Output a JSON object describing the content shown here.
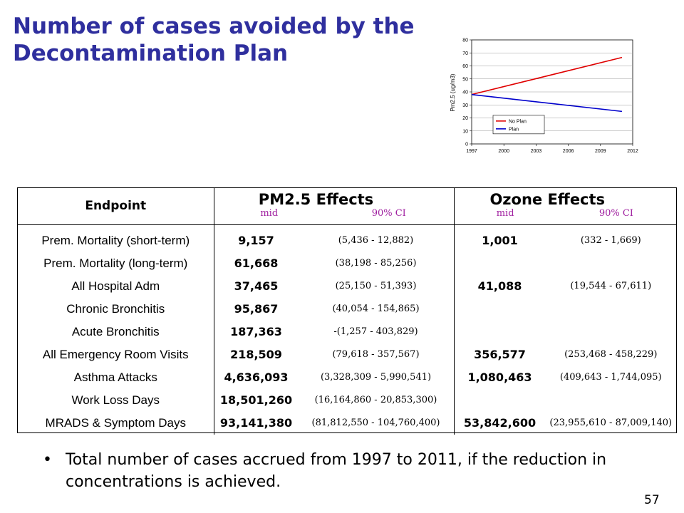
{
  "slide": {
    "title_line1": "Number of cases avoided by the",
    "title_line2": "Decontamination Plan",
    "bullet_marker": "•",
    "bullet_text": "Total number of cases accrued from 1997 to 2011, if the reduction in concentrations is achieved.",
    "page_number": "57"
  },
  "table": {
    "endpoint_header": "Endpoint",
    "pm25_header": "PM2.5 Effects",
    "ozone_header": "Ozone Effects",
    "mid_label": "mid",
    "ci_label": "90% CI",
    "rows": [
      {
        "endpoint": "Prem. Mortality (short-term)",
        "pm_mid": "9,157",
        "pm_ci": "(5,436 - 12,882)",
        "oz_mid": "1,001",
        "oz_ci": "(332 - 1,669)"
      },
      {
        "endpoint": "Prem. Mortality (long-term)",
        "pm_mid": "61,668",
        "pm_ci": "(38,198 - 85,256)",
        "oz_mid": "",
        "oz_ci": ""
      },
      {
        "endpoint": "All Hospital Adm",
        "pm_mid": "37,465",
        "pm_ci": "(25,150 - 51,393)",
        "oz_mid": "41,088",
        "oz_ci": "(19,544 - 67,611)"
      },
      {
        "endpoint": "Chronic Bronchitis",
        "pm_mid": "95,867",
        "pm_ci": "(40,054 - 154,865)",
        "oz_mid": "",
        "oz_ci": ""
      },
      {
        "endpoint": "Acute Bronchitis",
        "pm_mid": "187,363",
        "pm_ci": "-(1,257 - 403,829)",
        "oz_mid": "",
        "oz_ci": ""
      },
      {
        "endpoint": "All Emergency Room Visits",
        "pm_mid": "218,509",
        "pm_ci": "(79,618 - 357,567)",
        "oz_mid": "356,577",
        "oz_ci": "(253,468 - 458,229)"
      },
      {
        "endpoint": "Asthma Attacks",
        "pm_mid": "4,636,093",
        "pm_ci": "(3,328,309 - 5,990,541)",
        "oz_mid": "1,080,463",
        "oz_ci": "(409,643 - 1,744,095)"
      },
      {
        "endpoint": "Work Loss Days",
        "pm_mid": "18,501,260",
        "pm_ci": "(16,164,860 - 20,853,300)",
        "oz_mid": "",
        "oz_ci": ""
      },
      {
        "endpoint": "MRADS & Symptom Days",
        "pm_mid": "93,141,380",
        "pm_ci": "(81,812,550 - 104,760,400)",
        "oz_mid": "53,842,600",
        "oz_ci": "(23,955,610 - 87,009,140)"
      }
    ]
  },
  "chart_data": {
    "type": "line",
    "title": "",
    "xlabel": "",
    "ylabel": "Pm2.5 (ug/m3)",
    "xlim": [
      1997,
      2012
    ],
    "ylim": [
      0,
      80
    ],
    "xticks": [
      "1997",
      "2000",
      "2003",
      "2006",
      "2009",
      "2012"
    ],
    "yticks": [
      "0",
      "10",
      "20",
      "30",
      "40",
      "50",
      "60",
      "70",
      "80"
    ],
    "grid": true,
    "legend_position": "lower-left",
    "series": [
      {
        "name": "No Plan",
        "color": "#e00000",
        "x": [
          1997,
          2011
        ],
        "values": [
          38,
          66.5
        ]
      },
      {
        "name": "Plan",
        "color": "#0000cc",
        "x": [
          1997,
          2011
        ],
        "values": [
          38,
          25
        ]
      }
    ]
  }
}
